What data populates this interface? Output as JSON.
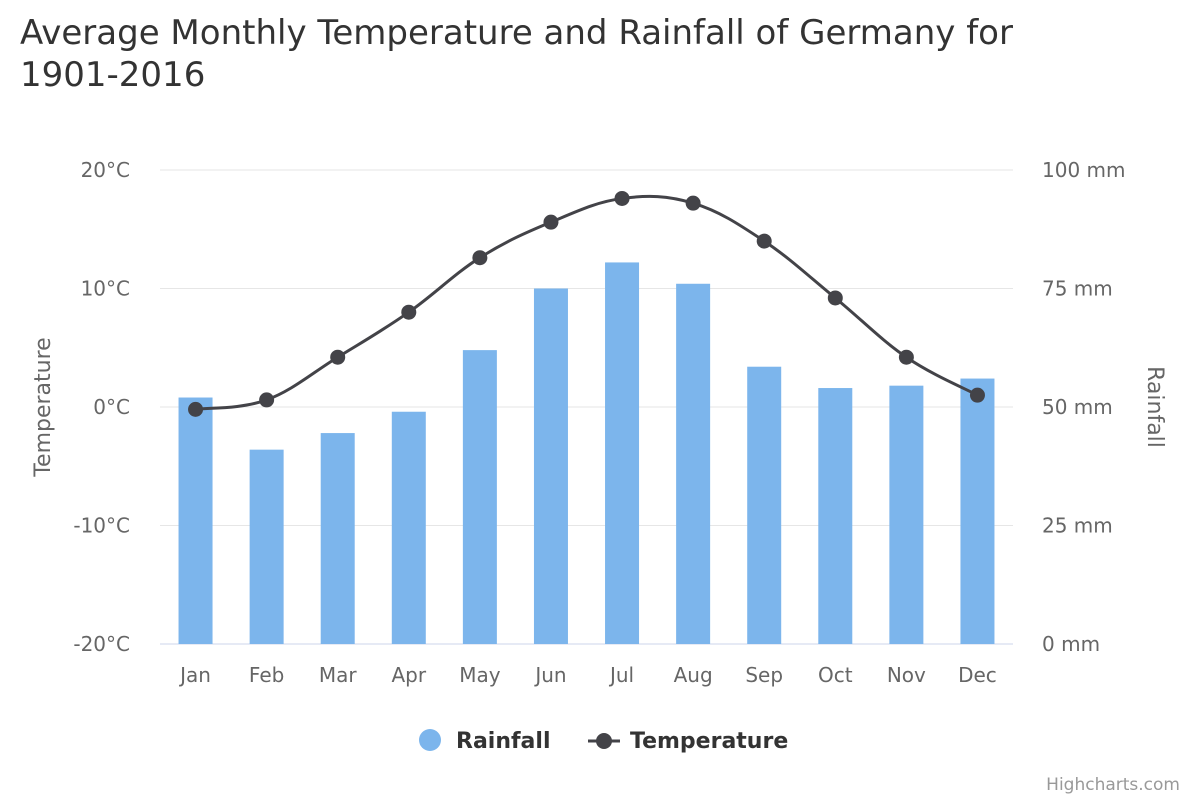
{
  "credits": "Highcharts.com",
  "chart_data": {
    "type": "bar",
    "title": "Average Monthly Temperature and Rainfall of Germany for 1901-2016",
    "categories": [
      "Jan",
      "Feb",
      "Mar",
      "Apr",
      "May",
      "Jun",
      "Jul",
      "Aug",
      "Sep",
      "Oct",
      "Nov",
      "Dec"
    ],
    "series": [
      {
        "name": "Rainfall",
        "type": "bar",
        "axis": "right",
        "color": "#7cb5ec",
        "values": [
          52,
          41,
          44.5,
          49,
          62,
          75,
          80.5,
          76,
          58.5,
          54,
          54.5,
          56
        ]
      },
      {
        "name": "Temperature",
        "type": "line",
        "axis": "left",
        "color": "#434348",
        "values": [
          -0.2,
          0.6,
          4.2,
          8.0,
          12.6,
          15.6,
          17.6,
          17.2,
          14.0,
          9.2,
          4.2,
          1.0
        ]
      }
    ],
    "y_left": {
      "label": "Temperature",
      "range": [
        -20,
        20
      ],
      "ticks": [
        "20°C",
        "10°C",
        "0°C",
        "-10°C",
        "-20°C"
      ],
      "tick_values": [
        20,
        10,
        0,
        -10,
        -20
      ]
    },
    "y_right": {
      "label": "Rainfall",
      "range": [
        0,
        100
      ],
      "ticks": [
        "100 mm",
        "75 mm",
        "50 mm",
        "25 mm",
        "0 mm"
      ],
      "tick_values": [
        100,
        75,
        50,
        25,
        0
      ]
    },
    "grid": true,
    "legend": "bottom-center"
  }
}
